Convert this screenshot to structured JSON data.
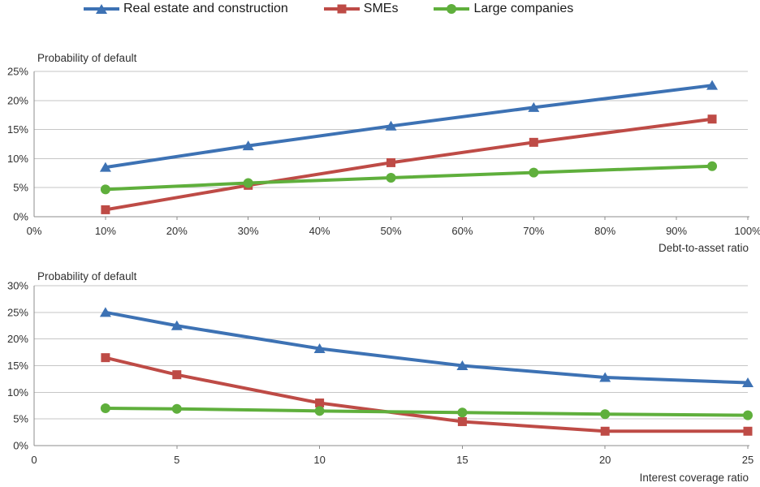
{
  "colors": {
    "real_estate_blue": "#3D72B4",
    "smes_red": "#BE4B46",
    "large_companies_green": "#5FAF3C",
    "gridline": "#C6C6C6",
    "axis": "#8C8C8C",
    "tick_text": "#303030",
    "legend_text": "#1a1a1a"
  },
  "legend": {
    "items": [
      {
        "label": "Real estate and construction",
        "color": "#3D72B4",
        "marker": "triangle"
      },
      {
        "label": "SMEs",
        "color": "#BE4B46",
        "marker": "square"
      },
      {
        "label": "Large companies",
        "color": "#5FAF3C",
        "marker": "circle"
      }
    ],
    "position": "top"
  },
  "chart_data": [
    {
      "type": "line",
      "title": "Probability of default",
      "xlabel": "Debt-to-asset ratio",
      "ylabel": "",
      "x": [
        10,
        30,
        50,
        70,
        95
      ],
      "xlim": [
        0,
        100
      ],
      "ylim": [
        0,
        25
      ],
      "grid": true,
      "xticks": {
        "values": [
          0,
          10,
          20,
          30,
          40,
          50,
          60,
          70,
          80,
          90,
          100
        ],
        "labels": [
          "0%",
          "10%",
          "20%",
          "30%",
          "40%",
          "50%",
          "60%",
          "70%",
          "80%",
          "90%",
          "100%"
        ]
      },
      "yticks": {
        "values": [
          0,
          5,
          10,
          15,
          20,
          25
        ],
        "labels": [
          "0%",
          "5%",
          "10%",
          "15%",
          "20%",
          "25%"
        ]
      },
      "series": [
        {
          "name": "Real estate and construction",
          "marker": "triangle",
          "color": "#3D72B4",
          "values": [
            8.5,
            12.2,
            15.6,
            18.8,
            22.6
          ]
        },
        {
          "name": "SMEs",
          "marker": "square",
          "color": "#BE4B46",
          "values": [
            1.2,
            5.4,
            9.3,
            12.8,
            16.8
          ]
        },
        {
          "name": "Large companies",
          "marker": "circle",
          "color": "#5FAF3C",
          "values": [
            4.7,
            5.8,
            6.7,
            7.6,
            8.7
          ]
        }
      ]
    },
    {
      "type": "line",
      "title": "Probability of default",
      "xlabel": "Interest coverage ratio",
      "ylabel": "",
      "x": [
        2.5,
        5,
        10,
        15,
        20,
        25
      ],
      "xlim": [
        0,
        25
      ],
      "ylim": [
        0,
        30
      ],
      "grid": true,
      "xticks": {
        "values": [
          0,
          5,
          10,
          15,
          20,
          25
        ],
        "labels": [
          "0",
          "5",
          "10",
          "15",
          "20",
          "25"
        ]
      },
      "yticks": {
        "values": [
          0,
          5,
          10,
          15,
          20,
          25,
          30
        ],
        "labels": [
          "0%",
          "5%",
          "10%",
          "15%",
          "20%",
          "25%",
          "30%"
        ]
      },
      "series": [
        {
          "name": "Real estate and construction",
          "marker": "triangle",
          "color": "#3D72B4",
          "values": [
            25.0,
            22.5,
            18.2,
            15.0,
            12.8,
            11.8
          ]
        },
        {
          "name": "SMEs",
          "marker": "square",
          "color": "#BE4B46",
          "values": [
            16.5,
            13.3,
            8.0,
            4.5,
            2.7,
            2.7
          ]
        },
        {
          "name": "Large companies",
          "marker": "circle",
          "color": "#5FAF3C",
          "values": [
            7.0,
            6.9,
            6.5,
            6.2,
            5.9,
            5.7
          ]
        }
      ]
    }
  ]
}
